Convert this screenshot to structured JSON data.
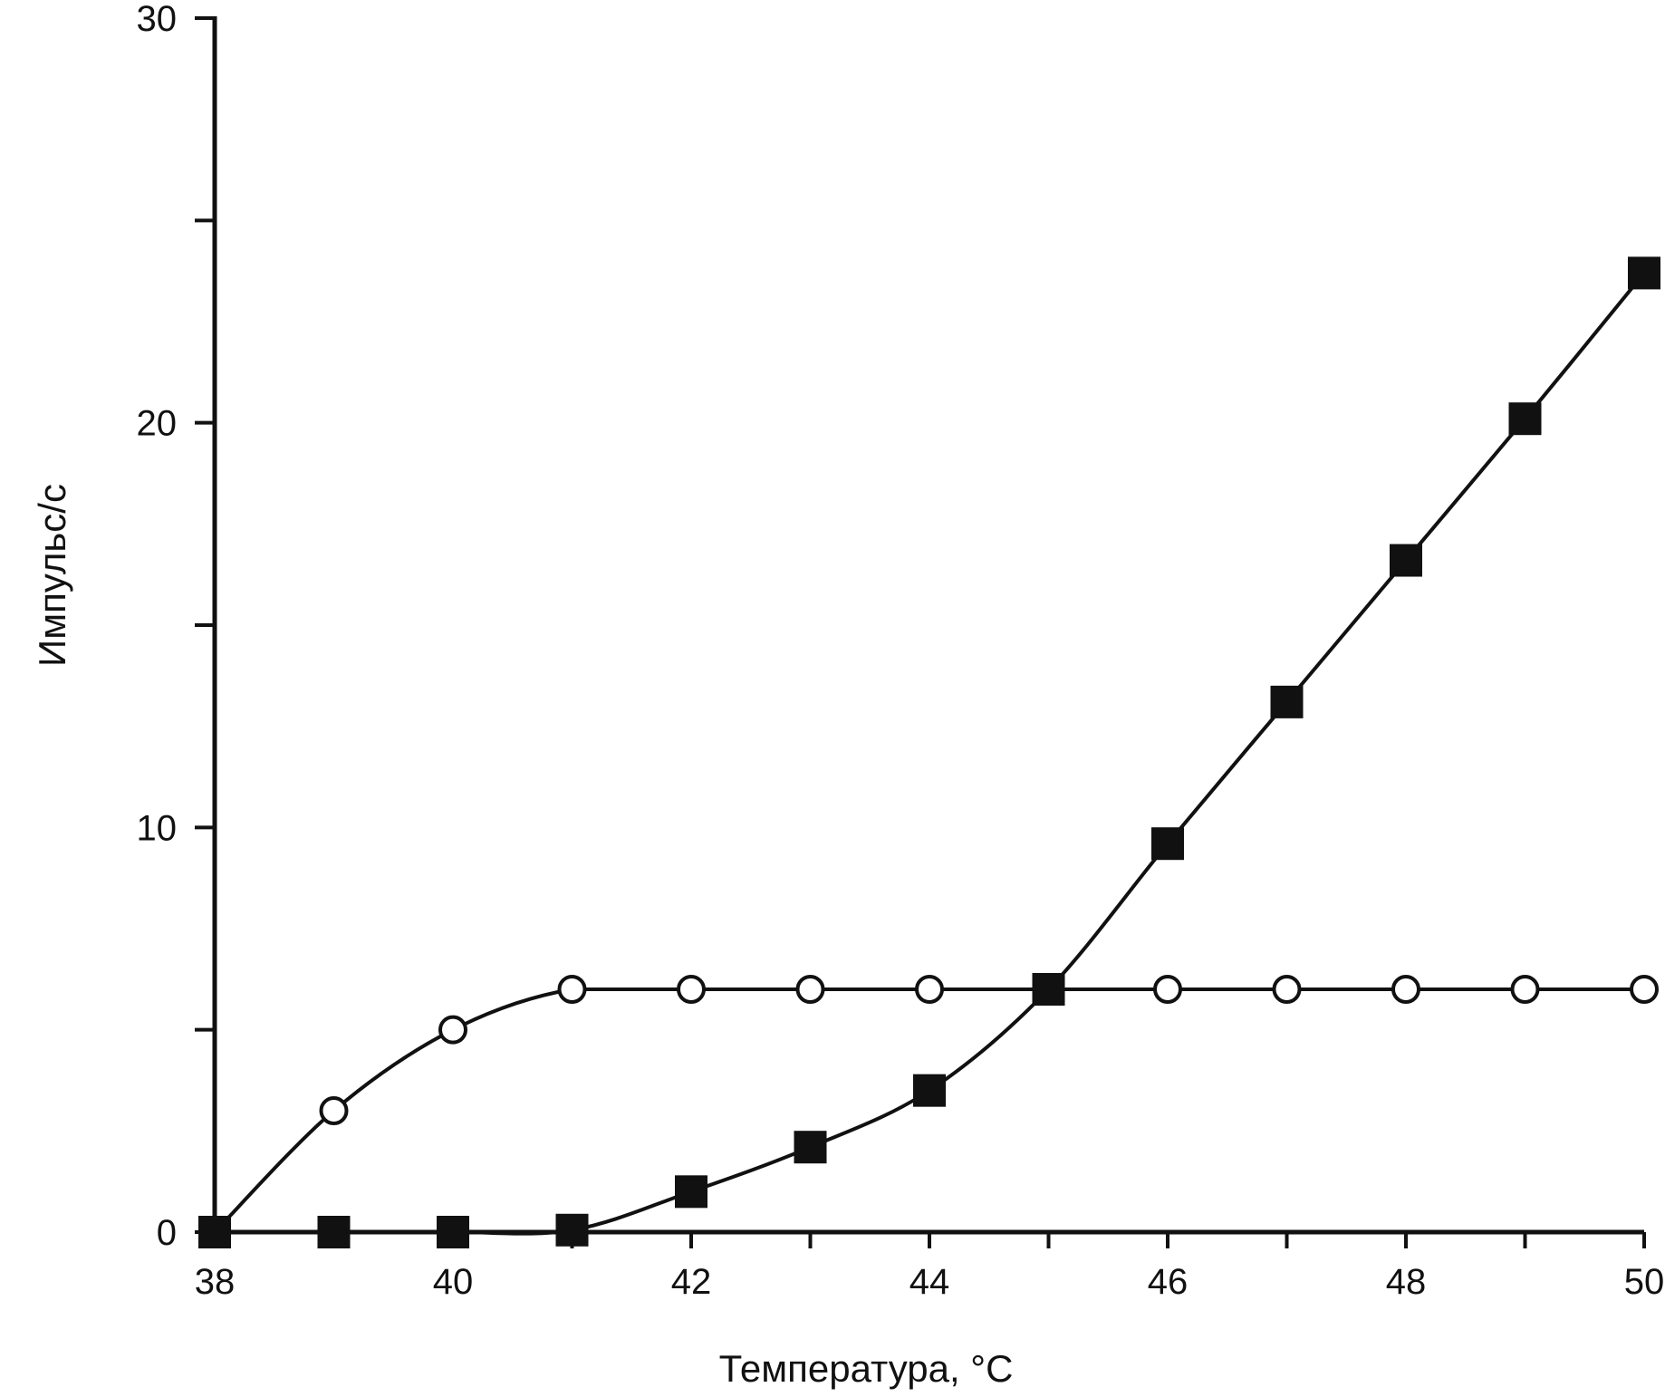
{
  "chart_data": {
    "type": "line",
    "title": "",
    "xlabel": "Температура, °С",
    "ylabel": "Импульс/с",
    "xlim": [
      38,
      50
    ],
    "ylim": [
      0,
      30
    ],
    "x_ticks": [
      38,
      39,
      40,
      41,
      42,
      43,
      44,
      45,
      46,
      47,
      48,
      49,
      50
    ],
    "x_tick_labels": [
      "38",
      "40",
      "42",
      "44",
      "46",
      "48",
      "50"
    ],
    "x_tick_label_values": [
      38,
      40,
      42,
      44,
      46,
      48,
      50
    ],
    "y_ticks": [
      0,
      5,
      10,
      15,
      20,
      25,
      30
    ],
    "y_tick_labels": [
      "0",
      "10",
      "20",
      "30"
    ],
    "y_tick_label_values": [
      0,
      10,
      20,
      30
    ],
    "grid": false,
    "series": [
      {
        "marker": "open-circle",
        "x": [
          38,
          39,
          40,
          41,
          42,
          43,
          44,
          45,
          46,
          47,
          48,
          49,
          50
        ],
        "y": [
          0,
          3.0,
          5.0,
          6.0,
          6.0,
          6.0,
          6.0,
          6.0,
          6.0,
          6.0,
          6.0,
          6.0,
          6.0
        ]
      },
      {
        "marker": "filled-square",
        "x": [
          38,
          39,
          40,
          41,
          42,
          43,
          44,
          45,
          46,
          47,
          48,
          49,
          50
        ],
        "y": [
          0,
          0,
          0,
          0.05,
          1.0,
          2.1,
          3.5,
          6.0,
          9.6,
          13.1,
          16.6,
          20.1,
          23.7
        ]
      }
    ],
    "colors": {
      "ink": "#111111",
      "background": "#ffffff"
    }
  }
}
